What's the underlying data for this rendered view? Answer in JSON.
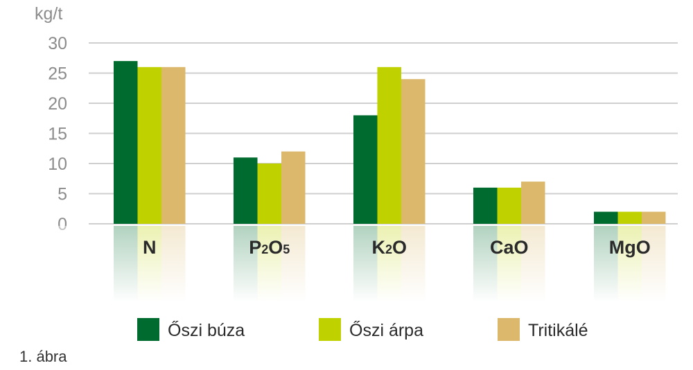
{
  "chart_data": {
    "type": "bar",
    "ylabel": "kg/t",
    "ylim": [
      0,
      30
    ],
    "yticks": [
      "0",
      "5",
      "10",
      "15",
      "20",
      "25",
      "30"
    ],
    "grid": true,
    "legend_position": "bottom",
    "categories": [
      {
        "base": "N",
        "sub": ""
      },
      {
        "base": "P",
        "sub": "2",
        "base2": "O",
        "sub2": "5"
      },
      {
        "base": "K",
        "sub": "2",
        "base2": "O",
        "sub2": ""
      },
      {
        "base": "CaO",
        "sub": ""
      },
      {
        "base": "MgO",
        "sub": ""
      }
    ],
    "series": [
      {
        "name": "Őszi búza",
        "color": "#006b2e",
        "values": [
          27,
          11,
          18,
          6,
          2
        ]
      },
      {
        "name": "Őszi árpa",
        "color": "#bfd200",
        "values": [
          26,
          10,
          26,
          6,
          2
        ]
      },
      {
        "name": "Tritikálé",
        "color": "#dbb86c",
        "values": [
          26,
          12,
          24,
          7,
          2
        ]
      }
    ]
  },
  "caption": "1. ábra",
  "colors": {
    "grid": "#cfcfcf",
    "tick_text": "#8c8c8c"
  }
}
